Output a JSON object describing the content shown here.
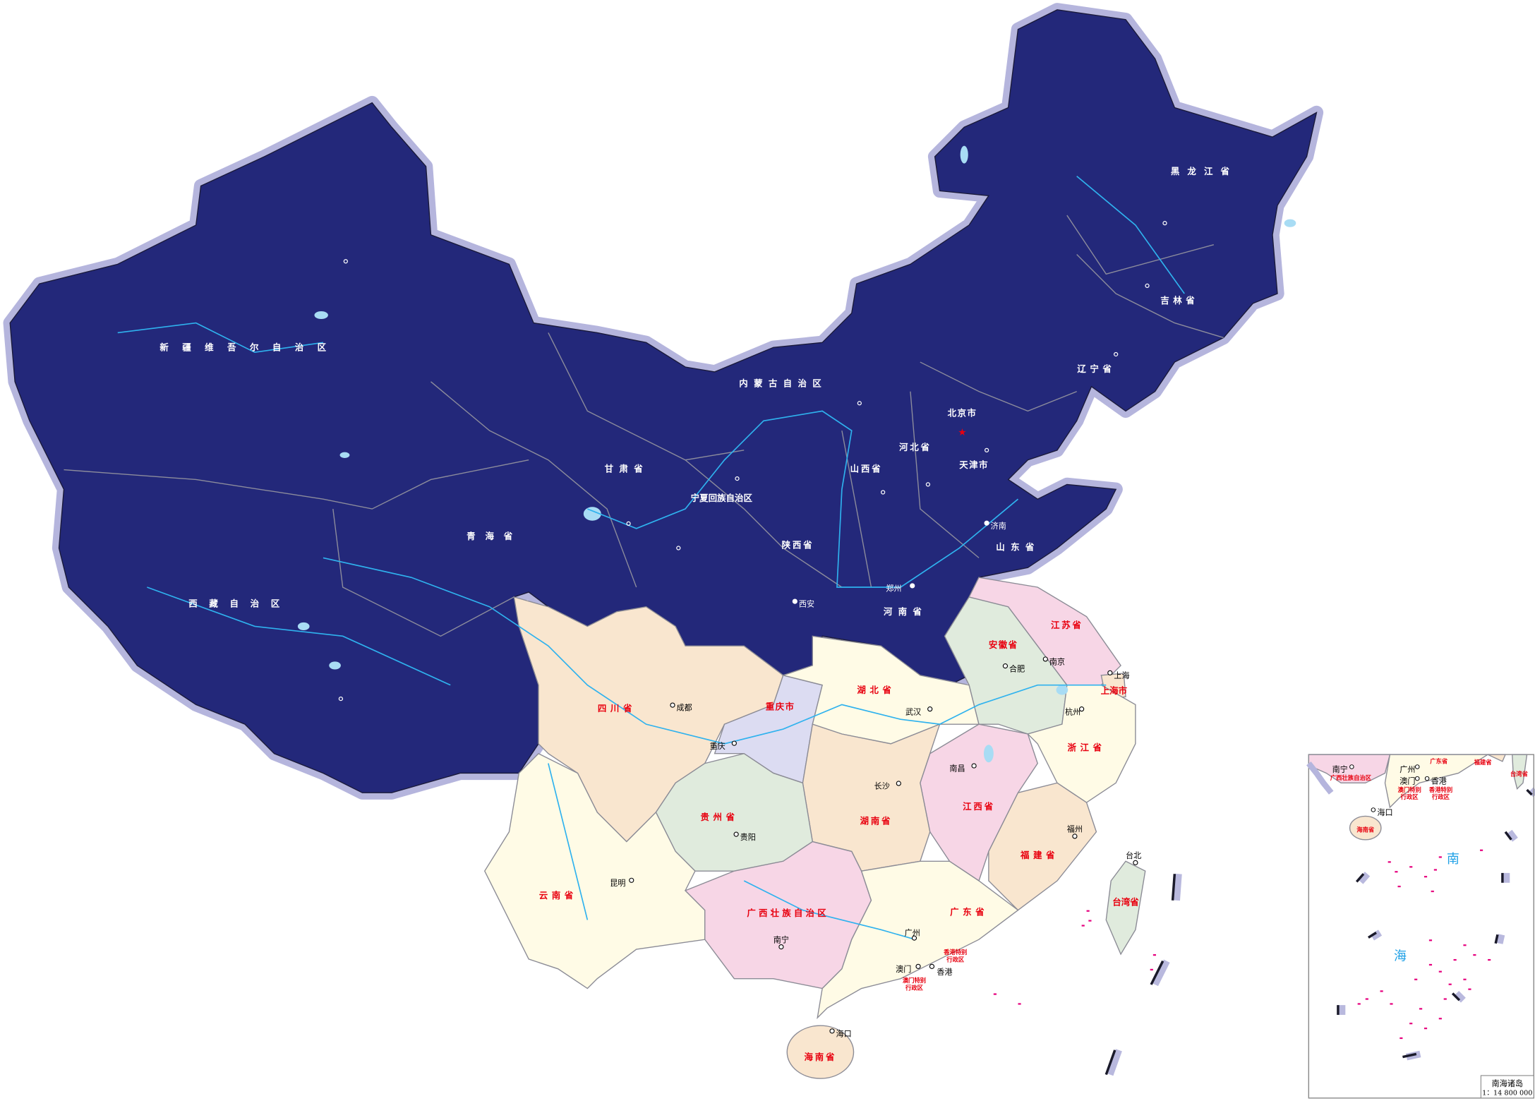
{
  "map": {
    "colors": {
      "north_region": "#23287a",
      "halo": "#b5b5dd",
      "beige": "#f9e6cf",
      "cream": "#fffbe6",
      "pink": "#f7d6e6",
      "green": "#e0ebdd",
      "lavender": "#dcdcf2",
      "river": "#2fb2ee",
      "label_red": "#e8000f",
      "islands": "#e6007e"
    },
    "province_labels": [
      "新疆维吾尔自治区",
      "西藏自治区",
      "青海省",
      "甘肃省",
      "内蒙古自治区",
      "黑龙江省",
      "吉林省",
      "辽宁省",
      "北京市",
      "天津市",
      "河北省",
      "山西省",
      "宁夏回族自治区",
      "陕西省",
      "山东省",
      "河南省",
      "四川省",
      "重庆市",
      "湖北省",
      "安徽省",
      "江苏省",
      "上海市",
      "浙江省",
      "江西省",
      "湖南省",
      "贵州省",
      "福建省",
      "云南省",
      "广西壮族自治区",
      "广东省",
      "台湾省",
      "海南省",
      "香港特别行政区",
      "澳门特别行政区"
    ],
    "city_labels": [
      "济南",
      "郑州",
      "西安",
      "成都",
      "重庆",
      "武汉",
      "长沙",
      "南昌",
      "合肥",
      "南京",
      "上海",
      "杭州",
      "福州",
      "贵阳",
      "昆明",
      "南宁",
      "广州",
      "澳门",
      "香港",
      "台北",
      "海口"
    ]
  },
  "inset": {
    "title": "南海诸岛",
    "scale": "1：14 800 000",
    "sea_label_1": "南",
    "sea_label_2": "海",
    "labels": [
      "广东省",
      "广西壮族自治区",
      "海南省",
      "福建省",
      "台湾省",
      "澳门特别行政区",
      "香港特别行政区"
    ],
    "cities": [
      "南宁",
      "广州",
      "澳门",
      "香港",
      "海口"
    ]
  }
}
